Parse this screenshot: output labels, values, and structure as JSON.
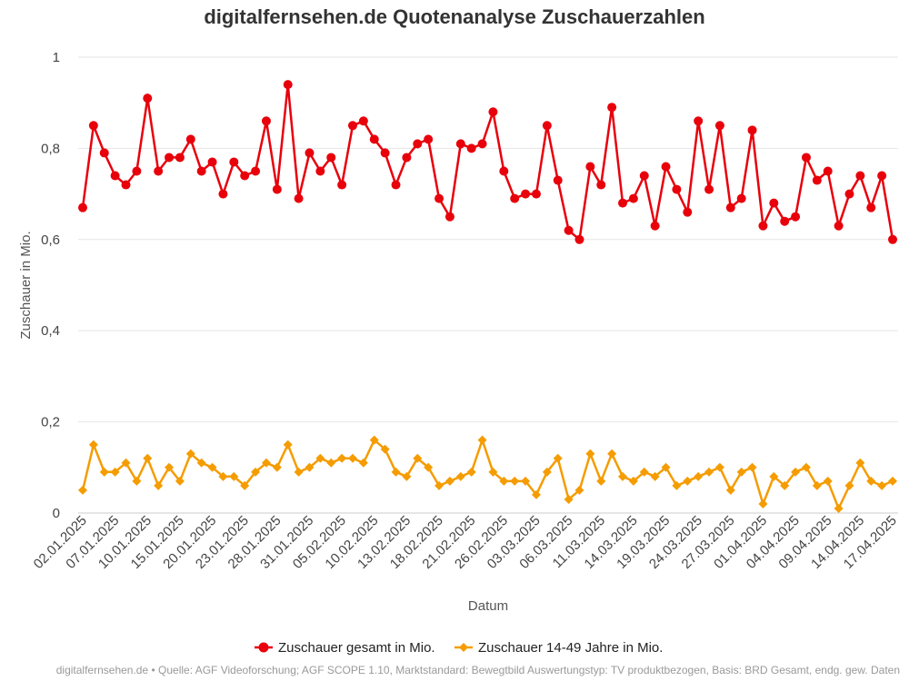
{
  "chart_data": {
    "type": "line",
    "title": "digitalfernsehen.de Quotenanalyse Zuschauerzahlen",
    "xlabel": "Datum",
    "ylabel": "Zuschauer in Mio.",
    "ylim": [
      0,
      1
    ],
    "yticks": [
      "0",
      "0,2",
      "0,4",
      "0,6",
      "0,8",
      "1"
    ],
    "grid": true,
    "legend_position": "bottom",
    "x_tick_labels": [
      "02.01.2025",
      "07.01.2025",
      "10.01.2025",
      "15.01.2025",
      "20.01.2025",
      "23.01.2025",
      "28.01.2025",
      "31.01.2025",
      "05.02.2025",
      "10.02.2025",
      "13.02.2025",
      "18.02.2025",
      "21.02.2025",
      "26.02.2025",
      "03.03.2025",
      "06.03.2025",
      "11.03.2025",
      "14.03.2025",
      "19.03.2025",
      "24.03.2025",
      "27.03.2025",
      "01.04.2025",
      "04.04.2025",
      "09.04.2025",
      "14.04.2025",
      "17.04.2025"
    ],
    "series": [
      {
        "name": "Zuschauer gesamt in Mio.",
        "color": "#e8000b",
        "marker": "circle",
        "values": [
          0.67,
          0.85,
          0.79,
          0.74,
          0.72,
          0.75,
          0.91,
          0.75,
          0.78,
          0.78,
          0.82,
          0.75,
          0.77,
          0.7,
          0.77,
          0.74,
          0.75,
          0.86,
          0.71,
          0.94,
          0.69,
          0.79,
          0.75,
          0.78,
          0.72,
          0.85,
          0.86,
          0.82,
          0.79,
          0.72,
          0.78,
          0.81,
          0.82,
          0.69,
          0.65,
          0.81,
          0.8,
          0.81,
          0.88,
          0.75,
          0.69,
          0.7,
          0.7,
          0.85,
          0.73,
          0.62,
          0.6,
          0.76,
          0.72,
          0.89,
          0.68,
          0.69,
          0.74,
          0.63,
          0.76,
          0.71,
          0.66,
          0.86,
          0.71,
          0.85,
          0.67,
          0.69,
          0.84,
          0.63,
          0.68,
          0.64,
          0.65,
          0.78,
          0.73,
          0.75,
          0.63,
          0.7,
          0.74,
          0.67,
          0.74,
          0.6
        ]
      },
      {
        "name": "Zuschauer 14-49 Jahre in Mio.",
        "color": "#f59c00",
        "marker": "diamond",
        "values": [
          0.05,
          0.15,
          0.09,
          0.09,
          0.11,
          0.07,
          0.12,
          0.06,
          0.1,
          0.07,
          0.13,
          0.11,
          0.1,
          0.08,
          0.08,
          0.06,
          0.09,
          0.11,
          0.1,
          0.15,
          0.09,
          0.1,
          0.12,
          0.11,
          0.12,
          0.12,
          0.11,
          0.16,
          0.14,
          0.09,
          0.08,
          0.12,
          0.1,
          0.06,
          0.07,
          0.08,
          0.09,
          0.16,
          0.09,
          0.07,
          0.07,
          0.07,
          0.04,
          0.09,
          0.12,
          0.03,
          0.05,
          0.13,
          0.07,
          0.13,
          0.08,
          0.07,
          0.09,
          0.08,
          0.1,
          0.06,
          0.07,
          0.08,
          0.09,
          0.1,
          0.05,
          0.09,
          0.1,
          0.02,
          0.08,
          0.06,
          0.09,
          0.1,
          0.06,
          0.07,
          0.01,
          0.06,
          0.11,
          0.07,
          0.06,
          0.07
        ]
      }
    ]
  },
  "footer": "digitalfernsehen.de • Quelle: AGF Videoforschung; AGF SCOPE 1.10, Marktstandard: Bewegtbild Auswertungstyp: TV produktbezogen, Basis: BRD Gesamt, endg. gew. Daten"
}
